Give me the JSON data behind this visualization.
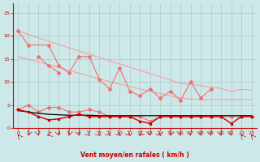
{
  "bg_color": "#cce8e8",
  "grid_color": "#b0c8c8",
  "light_red": "#f5a0a0",
  "medium_red": "#f07070",
  "dark_red": "#cc0000",
  "black_color": "#000000",
  "xlabel": "Vent moyen/en rafales ( km/h )",
  "ylim": [
    0,
    27
  ],
  "xlim": [
    -0.5,
    23.5
  ],
  "yticks": [
    0,
    5,
    10,
    15,
    20,
    25
  ],
  "xticks": [
    0,
    1,
    2,
    3,
    4,
    5,
    6,
    7,
    8,
    9,
    10,
    11,
    12,
    13,
    14,
    15,
    16,
    17,
    18,
    19,
    20,
    21,
    22,
    23
  ],
  "x": [
    0,
    1,
    2,
    3,
    4,
    5,
    6,
    7,
    8,
    9,
    10,
    11,
    12,
    13,
    14,
    15,
    16,
    17,
    18,
    19,
    20,
    21,
    22,
    23
  ],
  "trend_upper": [
    21,
    20.3,
    19.5,
    18.8,
    18.1,
    17.4,
    16.7,
    16.0,
    15.3,
    14.6,
    13.9,
    13.2,
    12.5,
    11.8,
    11.1,
    10.4,
    9.7,
    9.5,
    9.2,
    8.9,
    8.6,
    8.0,
    8.4,
    8.2
  ],
  "trend_lower": [
    15.5,
    14.9,
    14.3,
    13.7,
    13.1,
    12.5,
    11.9,
    11.3,
    10.7,
    10.1,
    9.5,
    9.0,
    8.5,
    8.0,
    7.5,
    7.0,
    6.5,
    6.3,
    6.2,
    6.2,
    6.2,
    6.2,
    6.2,
    6.2
  ],
  "zigzag_upper": [
    21,
    18,
    null,
    18,
    13.5,
    12,
    15.5,
    15.5,
    10.5,
    8.5,
    13,
    8,
    7,
    8.5,
    6.5,
    8,
    6,
    10,
    6.5,
    8.5,
    null,
    null,
    null,
    null
  ],
  "zigzag_lower": [
    null,
    null,
    15.5,
    13.5,
    12,
    null,
    null,
    null,
    null,
    null,
    null,
    null,
    null,
    null,
    null,
    null,
    null,
    null,
    null,
    null,
    null,
    null,
    null,
    null
  ],
  "red_upper": [
    4,
    5,
    3.5,
    4.5,
    4.5,
    3.5,
    3.5,
    4,
    3.5,
    2.5,
    2.5,
    2.5,
    2.5,
    1.5,
    2.5,
    2.5,
    2.5,
    2.5,
    2.5,
    2.5,
    2.5,
    2.5,
    2.5,
    2.5
  ],
  "red_lower": [
    4,
    3.5,
    2.5,
    1.8,
    2.0,
    2.5,
    3.0,
    2.5,
    2.5,
    2.5,
    2.5,
    2.5,
    1.5,
    1.0,
    2.5,
    2.5,
    2.5,
    2.5,
    2.5,
    2.5,
    2.5,
    1.0,
    2.5,
    2.5
  ],
  "black_trend": [
    3.8,
    3.5,
    3.2,
    3.0,
    2.9,
    2.8,
    2.8,
    2.8,
    2.7,
    2.7,
    2.7,
    2.7,
    2.7,
    2.7,
    2.7,
    2.7,
    2.7,
    2.7,
    2.7,
    2.7,
    2.7,
    2.7,
    2.7,
    2.7
  ],
  "arrow_angles": [
    200,
    350,
    10,
    300,
    10,
    350,
    10,
    30,
    30,
    30,
    30,
    30,
    330,
    10,
    30,
    350,
    10,
    10,
    10,
    10,
    10,
    10,
    200,
    200
  ]
}
